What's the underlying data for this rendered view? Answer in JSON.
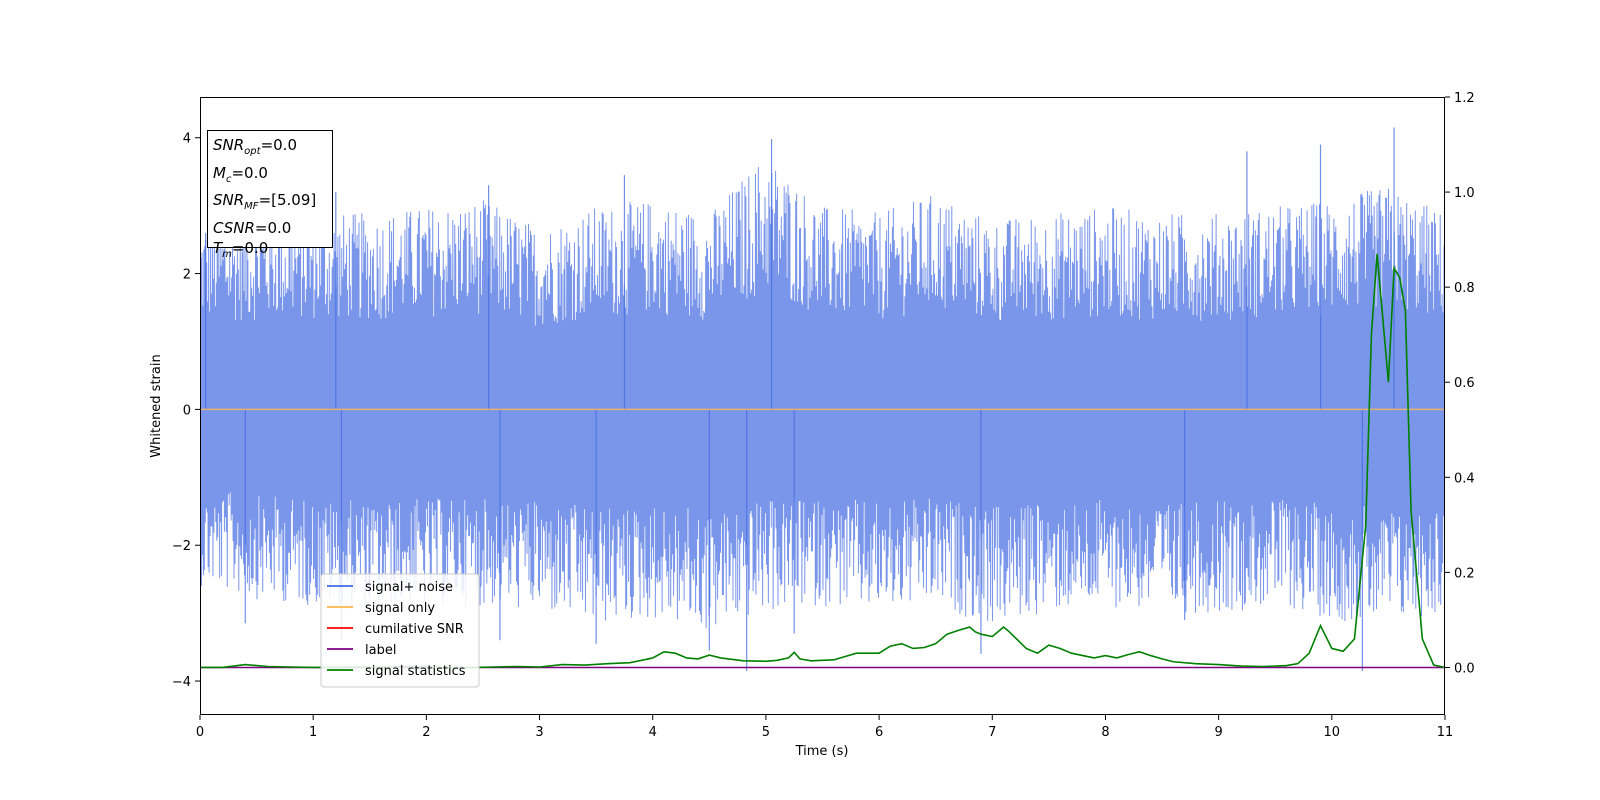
{
  "chart_data": {
    "type": "line",
    "title": "",
    "xlabel": "Time (s)",
    "ylabel": "Whitened strain",
    "y2label": "",
    "xlim": [
      0,
      11
    ],
    "ylim": [
      -4.5,
      4.6
    ],
    "y2lim": [
      -0.1,
      1.2
    ],
    "x_ticks": [
      0,
      1,
      2,
      3,
      4,
      5,
      6,
      7,
      8,
      9,
      10,
      11
    ],
    "y_ticks": [
      -4,
      -2,
      0,
      2,
      4
    ],
    "y2_ticks": [
      0.0,
      0.2,
      0.4,
      0.6,
      0.8,
      1.0,
      1.2
    ],
    "x_tick_labels": [
      "0",
      "1",
      "2",
      "3",
      "4",
      "5",
      "6",
      "7",
      "8",
      "9",
      "10",
      "11"
    ],
    "y_tick_labels": [
      "−4",
      "−2",
      "0",
      "2",
      "4"
    ],
    "y2_tick_labels": [
      "0.0",
      "0.2",
      "0.4",
      "0.6",
      "0.8",
      "1.0",
      "1.2"
    ],
    "grid": false,
    "legend_position": "lower-left",
    "series": [
      {
        "name": "signal+ noise",
        "color": "#4169e1",
        "axis": "left",
        "envelope": {
          "x": [
            0,
            0.5,
            1,
            1.5,
            2,
            2.5,
            3,
            3.5,
            4,
            4.5,
            5,
            5.5,
            6,
            6.5,
            7,
            7.5,
            8,
            8.5,
            9,
            9.5,
            10,
            10.5,
            11
          ],
          "upper": [
            2.8,
            2.9,
            2.9,
            2.9,
            3.0,
            3.1,
            2.7,
            3.0,
            3.1,
            2.9,
            3.8,
            3.0,
            2.9,
            3.2,
            2.8,
            2.9,
            3.0,
            2.9,
            2.9,
            3.0,
            3.1,
            3.3,
            2.9
          ],
          "lower": [
            -2.6,
            -2.8,
            -2.9,
            -3.0,
            -2.9,
            -2.9,
            -3.0,
            -3.2,
            -3.1,
            -3.3,
            -3.0,
            -2.9,
            -3.0,
            -2.9,
            -3.2,
            -3.0,
            -2.9,
            -3.0,
            -3.0,
            -2.9,
            -3.1,
            -3.2,
            -3.0
          ]
        },
        "spikes": [
          {
            "x": 0.05,
            "y": 2.6
          },
          {
            "x": 0.4,
            "y": -3.15
          },
          {
            "x": 1.2,
            "y": 3.2
          },
          {
            "x": 1.25,
            "y": -3.4
          },
          {
            "x": 2.55,
            "y": 3.3
          },
          {
            "x": 2.65,
            "y": -3.4
          },
          {
            "x": 3.5,
            "y": -3.45
          },
          {
            "x": 3.75,
            "y": 3.45
          },
          {
            "x": 4.5,
            "y": -3.55
          },
          {
            "x": 4.83,
            "y": -3.85
          },
          {
            "x": 5.05,
            "y": 3.98
          },
          {
            "x": 5.25,
            "y": -3.3
          },
          {
            "x": 6.9,
            "y": -3.6
          },
          {
            "x": 8.7,
            "y": -3.1
          },
          {
            "x": 9.25,
            "y": 3.8
          },
          {
            "x": 9.9,
            "y": 3.9
          },
          {
            "x": 10.27,
            "y": -3.85
          },
          {
            "x": 10.55,
            "y": 4.15
          }
        ]
      },
      {
        "name": "signal only",
        "color": "#ffb74d",
        "axis": "left",
        "x": [
          0,
          11
        ],
        "y": [
          0,
          0
        ]
      },
      {
        "name": "cumilative SNR",
        "color": "#ff0000",
        "axis": "right",
        "x": [],
        "y": []
      },
      {
        "name": "label",
        "color": "#800080",
        "axis": "right",
        "x": [
          0,
          11
        ],
        "y": [
          0,
          0
        ]
      },
      {
        "name": "signal statistics",
        "color": "#008000",
        "axis": "right",
        "x": [
          0,
          0.2,
          0.4,
          0.6,
          0.8,
          1.0,
          1.2,
          1.4,
          1.6,
          1.8,
          2.0,
          2.2,
          2.4,
          2.6,
          2.8,
          3.0,
          3.2,
          3.4,
          3.6,
          3.8,
          4.0,
          4.1,
          4.2,
          4.3,
          4.4,
          4.5,
          4.6,
          4.8,
          5.0,
          5.1,
          5.2,
          5.25,
          5.3,
          5.4,
          5.6,
          5.8,
          6.0,
          6.1,
          6.2,
          6.3,
          6.4,
          6.5,
          6.6,
          6.7,
          6.8,
          6.85,
          6.9,
          7.0,
          7.1,
          7.15,
          7.3,
          7.4,
          7.5,
          7.6,
          7.7,
          7.8,
          7.9,
          8.0,
          8.1,
          8.2,
          8.3,
          8.4,
          8.5,
          8.6,
          8.8,
          9.0,
          9.2,
          9.4,
          9.6,
          9.7,
          9.8,
          9.9,
          10.0,
          10.1,
          10.2,
          10.3,
          10.35,
          10.4,
          10.5,
          10.55,
          10.6,
          10.65,
          10.7,
          10.8,
          10.9,
          11.0
        ],
        "y": [
          0.0,
          0.0,
          0.006,
          0.002,
          0.001,
          0.0,
          0.0,
          0.001,
          0.0,
          0.002,
          0.001,
          0.0,
          0.0,
          0.001,
          0.002,
          0.001,
          0.006,
          0.005,
          0.008,
          0.01,
          0.02,
          0.033,
          0.03,
          0.02,
          0.018,
          0.026,
          0.02,
          0.014,
          0.013,
          0.015,
          0.02,
          0.032,
          0.018,
          0.014,
          0.016,
          0.03,
          0.03,
          0.045,
          0.05,
          0.04,
          0.042,
          0.05,
          0.07,
          0.078,
          0.085,
          0.075,
          0.07,
          0.065,
          0.085,
          0.075,
          0.04,
          0.03,
          0.047,
          0.04,
          0.03,
          0.025,
          0.02,
          0.025,
          0.02,
          0.027,
          0.033,
          0.025,
          0.018,
          0.012,
          0.008,
          0.006,
          0.003,
          0.002,
          0.004,
          0.008,
          0.03,
          0.088,
          0.04,
          0.034,
          0.06,
          0.3,
          0.7,
          0.87,
          0.6,
          0.84,
          0.82,
          0.75,
          0.33,
          0.06,
          0.005,
          0.0
        ]
      }
    ],
    "annotation": {
      "snr_opt_sym": "SNR",
      "snr_opt_sub": "opt",
      "snr_opt_val": "=0.0",
      "mc_sym": "M",
      "mc_sub": "c",
      "mc_val": "=0.0",
      "snr_mf_sym": "SNR",
      "snr_mf_sub": "MF",
      "snr_mf_val": "=[5.09]",
      "csnr_sym": "CSNR",
      "csnr_val": "=0.0",
      "tm_sym": "T",
      "tm_sub": "m",
      "tm_val": "=0.0"
    }
  }
}
